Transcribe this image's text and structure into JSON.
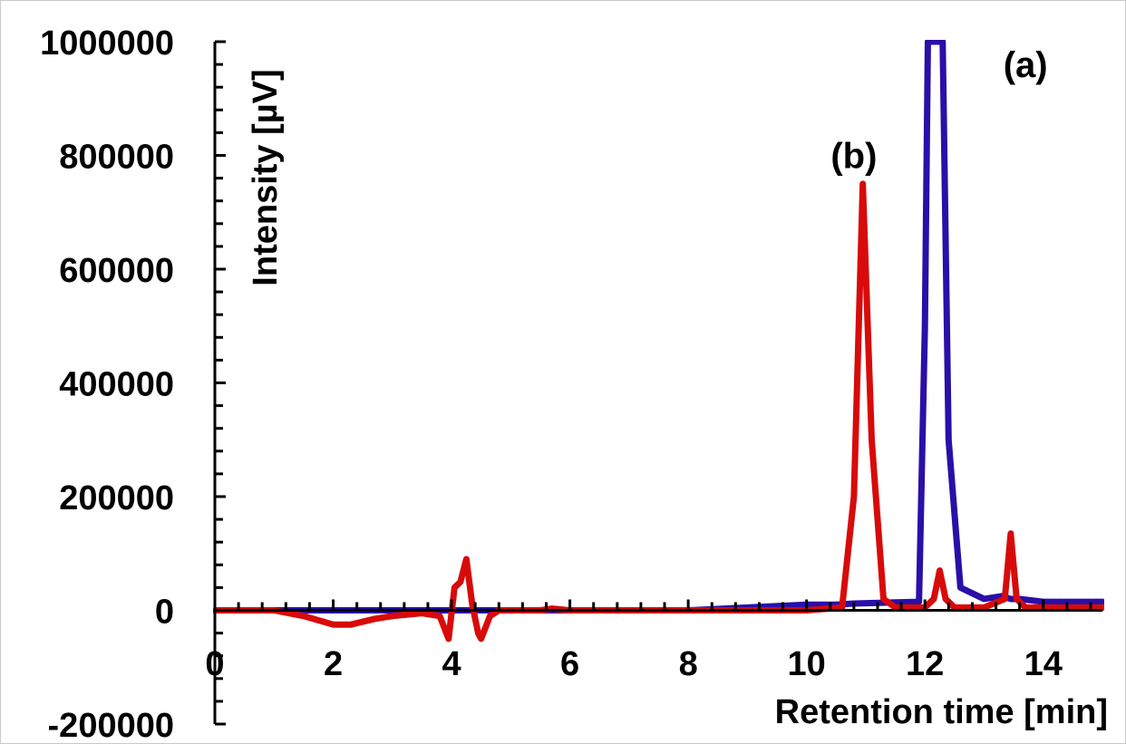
{
  "chart_data": {
    "type": "line",
    "title": "",
    "xlabel": "Retention time [min]",
    "ylabel": "Intensity [µV]",
    "xlim": [
      0,
      15
    ],
    "ylim": [
      -200000,
      1000000
    ],
    "x_ticks": [
      0,
      2,
      4,
      6,
      8,
      10,
      12,
      14
    ],
    "x_tick_labels": [
      "0",
      "2",
      "4",
      "6",
      "8",
      "10",
      "12",
      "14"
    ],
    "y_ticks": [
      -200000,
      0,
      200000,
      400000,
      600000,
      800000,
      1000000
    ],
    "y_tick_labels": [
      "-200000",
      "0",
      "200000",
      "400000",
      "600000",
      "800000",
      "1000000"
    ],
    "grid": false,
    "legend": "none",
    "annotations": [
      {
        "text": "(a)",
        "x": 13.7,
        "y": 960000
      },
      {
        "text": "(b)",
        "x": 10.8,
        "y": 800000
      }
    ],
    "series": [
      {
        "color": "#2a0fa8",
        "x": [
          0,
          2,
          3.5,
          4.0,
          4.2,
          4.5,
          5,
          6,
          8,
          9,
          10,
          10.5,
          10.8,
          11.5,
          11.9,
          12.0,
          12.05,
          12.3,
          12.4,
          12.6,
          12.8,
          13.0,
          13.3,
          13.45,
          13.6,
          14,
          15
        ],
        "y": [
          0,
          0,
          0,
          0,
          0,
          0,
          0,
          0,
          0,
          5000,
          10000,
          10000,
          12000,
          14000,
          15000,
          500000,
          1000000,
          1000000,
          300000,
          40000,
          30000,
          20000,
          25000,
          20000,
          20000,
          15000,
          15000
        ]
      },
      {
        "color": "#d80a0a",
        "x": [
          0,
          1.0,
          1.5,
          2.0,
          2.3,
          2.7,
          3.0,
          3.5,
          3.8,
          3.95,
          4.05,
          4.15,
          4.25,
          4.35,
          4.45,
          4.5,
          4.65,
          4.8,
          5.0,
          5.5,
          5.7,
          6.0,
          7.0,
          8.0,
          9.0,
          10.0,
          10.6,
          10.8,
          10.95,
          11.1,
          11.3,
          11.5,
          12.0,
          12.15,
          12.25,
          12.35,
          12.5,
          13.0,
          13.35,
          13.45,
          13.55,
          13.7,
          14.0,
          15.0
        ],
        "y": [
          0,
          0,
          -10000,
          -25000,
          -25000,
          -15000,
          -10000,
          -5000,
          -10000,
          -50000,
          40000,
          50000,
          90000,
          10000,
          -40000,
          -50000,
          -10000,
          0,
          0,
          0,
          3000,
          0,
          0,
          0,
          0,
          0,
          5000,
          200000,
          750000,
          300000,
          20000,
          5000,
          5000,
          20000,
          70000,
          20000,
          5000,
          5000,
          20000,
          135000,
          20000,
          5000,
          5000,
          5000
        ]
      },
      {
        "color": "#000000",
        "x": [
          0,
          2,
          4,
          6,
          8,
          10,
          12,
          14,
          15
        ],
        "y": [
          0,
          0,
          0,
          0,
          0,
          0,
          0,
          0,
          0
        ]
      }
    ]
  }
}
